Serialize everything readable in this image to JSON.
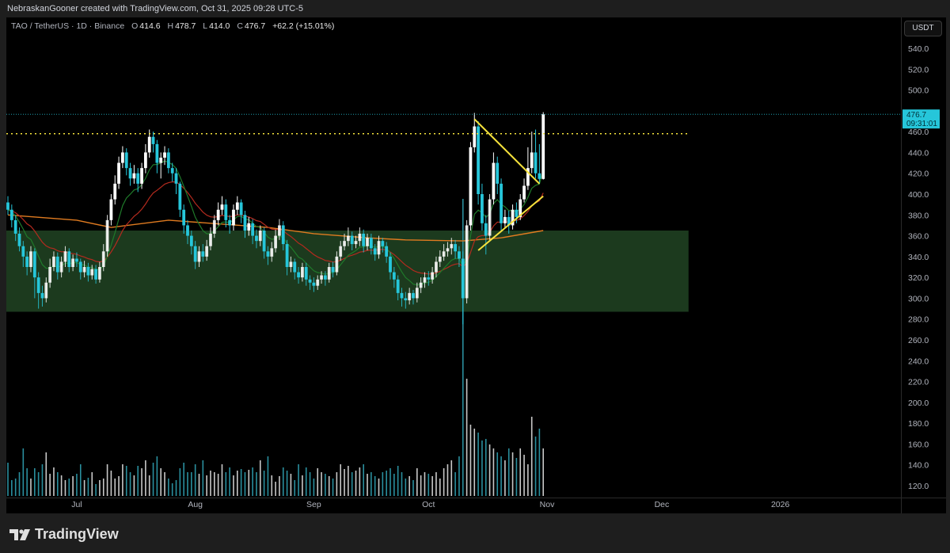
{
  "header": {
    "attribution": "NebraskanGooner created with TradingView.com, Oct 31, 2025 09:28 UTC-5"
  },
  "legend": {
    "symbol": "TAO / TetherUS · 1D · Binance",
    "open_label": "O",
    "open": "414.6",
    "high_label": "H",
    "high": "478.7",
    "low_label": "L",
    "low": "414.0",
    "close_label": "C",
    "close": "476.7",
    "change": "+62.2 (+15.01%)"
  },
  "price_axis": {
    "currency": "USDT",
    "last_price": "476.7",
    "countdown": "09:31:01"
  },
  "footer": {
    "brand": "TradingView"
  },
  "colors": {
    "up": "#ffffff",
    "down": "#26c6da",
    "volume_up": "#c8c8c8",
    "volume_down": "#2a8f9e",
    "zone": "#1c3a1e",
    "fast_ma": "#1f7a2a",
    "slow_ma": "#b32a1e",
    "long_ma": "#e07b20",
    "trendline": "#f5e23c",
    "resistance": "#f5e23c",
    "last_price_line": "#26c6da"
  },
  "chart_data": {
    "type": "candlestick",
    "start_date": "2025-06-13",
    "interval": "1D",
    "ylim": [
      110,
      550
    ],
    "y_ticks": [
      540,
      520,
      500,
      480,
      460,
      440,
      420,
      400,
      380,
      360,
      340,
      320,
      300,
      280,
      260,
      240,
      220,
      200,
      180,
      160,
      140,
      120
    ],
    "x_ticks": [
      {
        "label": "Jul",
        "date": "2025-07-01"
      },
      {
        "label": "Aug",
        "date": "2025-08-01"
      },
      {
        "label": "Sep",
        "date": "2025-09-01"
      },
      {
        "label": "Oct",
        "date": "2025-10-01"
      },
      {
        "label": "Nov",
        "date": "2025-11-01"
      },
      {
        "label": "Dec",
        "date": "2025-12-01"
      },
      {
        "label": "2026",
        "date": "2026-01-01"
      }
    ],
    "grid": false,
    "ohlc": [
      [
        392,
        398,
        380,
        385
      ],
      [
        385,
        390,
        368,
        375
      ],
      [
        375,
        380,
        355,
        362
      ],
      [
        362,
        368,
        345,
        350
      ],
      [
        350,
        355,
        330,
        340
      ],
      [
        340,
        345,
        322,
        330
      ],
      [
        330,
        350,
        325,
        345
      ],
      [
        345,
        348,
        300,
        320
      ],
      [
        320,
        325,
        290,
        305
      ],
      [
        305,
        312,
        292,
        300
      ],
      [
        300,
        320,
        296,
        315
      ],
      [
        315,
        338,
        310,
        330
      ],
      [
        330,
        345,
        326,
        340
      ],
      [
        340,
        344,
        318,
        325
      ],
      [
        325,
        340,
        320,
        335
      ],
      [
        335,
        350,
        330,
        345
      ],
      [
        345,
        348,
        325,
        330
      ],
      [
        330,
        342,
        326,
        338
      ],
      [
        338,
        344,
        330,
        335
      ],
      [
        335,
        338,
        318,
        325
      ],
      [
        325,
        336,
        320,
        330
      ],
      [
        330,
        334,
        316,
        322
      ],
      [
        322,
        332,
        318,
        328
      ],
      [
        328,
        332,
        314,
        318
      ],
      [
        318,
        335,
        315,
        330
      ],
      [
        330,
        352,
        326,
        345
      ],
      [
        345,
        380,
        340,
        375
      ],
      [
        375,
        400,
        370,
        395
      ],
      [
        395,
        418,
        390,
        410
      ],
      [
        410,
        436,
        405,
        430
      ],
      [
        430,
        446,
        425,
        440
      ],
      [
        440,
        444,
        418,
        425
      ],
      [
        425,
        430,
        408,
        415
      ],
      [
        415,
        428,
        410,
        420
      ],
      [
        420,
        425,
        402,
        410
      ],
      [
        410,
        430,
        405,
        425
      ],
      [
        425,
        448,
        420,
        440
      ],
      [
        440,
        462,
        435,
        455
      ],
      [
        455,
        460,
        440,
        448
      ],
      [
        448,
        452,
        420,
        430
      ],
      [
        430,
        440,
        415,
        435
      ],
      [
        435,
        446,
        428,
        440
      ],
      [
        440,
        444,
        420,
        425
      ],
      [
        425,
        430,
        412,
        420
      ],
      [
        420,
        425,
        400,
        410
      ],
      [
        410,
        412,
        378,
        385
      ],
      [
        385,
        390,
        362,
        370
      ],
      [
        370,
        375,
        352,
        360
      ],
      [
        360,
        365,
        342,
        350
      ],
      [
        350,
        355,
        328,
        335
      ],
      [
        335,
        350,
        330,
        345
      ],
      [
        345,
        352,
        335,
        340
      ],
      [
        340,
        356,
        336,
        350
      ],
      [
        350,
        368,
        346,
        362
      ],
      [
        362,
        380,
        358,
        375
      ],
      [
        375,
        392,
        370,
        385
      ],
      [
        385,
        398,
        380,
        390
      ],
      [
        390,
        395,
        368,
        375
      ],
      [
        375,
        380,
        362,
        370
      ],
      [
        370,
        390,
        365,
        385
      ],
      [
        385,
        398,
        380,
        392
      ],
      [
        392,
        395,
        372,
        380
      ],
      [
        380,
        384,
        358,
        365
      ],
      [
        365,
        378,
        360,
        372
      ],
      [
        372,
        376,
        352,
        360
      ],
      [
        360,
        366,
        348,
        355
      ],
      [
        355,
        370,
        350,
        365
      ],
      [
        365,
        368,
        338,
        345
      ],
      [
        345,
        350,
        332,
        340
      ],
      [
        340,
        354,
        335,
        348
      ],
      [
        348,
        366,
        344,
        360
      ],
      [
        360,
        376,
        356,
        370
      ],
      [
        370,
        374,
        346,
        352
      ],
      [
        352,
        356,
        322,
        330
      ],
      [
        330,
        340,
        325,
        335
      ],
      [
        335,
        338,
        318,
        325
      ],
      [
        325,
        330,
        314,
        320
      ],
      [
        320,
        334,
        316,
        330
      ],
      [
        330,
        334,
        312,
        318
      ],
      [
        318,
        322,
        308,
        315
      ],
      [
        315,
        320,
        306,
        312
      ],
      [
        312,
        322,
        308,
        318
      ],
      [
        318,
        326,
        314,
        322
      ],
      [
        322,
        326,
        312,
        318
      ],
      [
        318,
        334,
        315,
        330
      ],
      [
        330,
        335,
        320,
        325
      ],
      [
        325,
        345,
        322,
        340
      ],
      [
        340,
        355,
        336,
        350
      ],
      [
        350,
        362,
        346,
        355
      ],
      [
        355,
        368,
        350,
        360
      ],
      [
        360,
        364,
        346,
        352
      ],
      [
        352,
        360,
        348,
        355
      ],
      [
        355,
        368,
        350,
        362
      ],
      [
        362,
        366,
        344,
        350
      ],
      [
        350,
        362,
        346,
        358
      ],
      [
        358,
        362,
        342,
        348
      ],
      [
        348,
        352,
        336,
        342
      ],
      [
        342,
        360,
        338,
        355
      ],
      [
        355,
        358,
        344,
        350
      ],
      [
        350,
        354,
        334,
        340
      ],
      [
        340,
        344,
        318,
        325
      ],
      [
        325,
        330,
        310,
        318
      ],
      [
        318,
        322,
        298,
        305
      ],
      [
        305,
        310,
        292,
        300
      ],
      [
        300,
        306,
        290,
        298
      ],
      [
        298,
        310,
        294,
        305
      ],
      [
        305,
        308,
        294,
        300
      ],
      [
        300,
        315,
        296,
        310
      ],
      [
        310,
        320,
        305,
        315
      ],
      [
        315,
        325,
        310,
        320
      ],
      [
        320,
        326,
        312,
        318
      ],
      [
        318,
        330,
        314,
        325
      ],
      [
        325,
        340,
        320,
        335
      ],
      [
        335,
        346,
        330,
        340
      ],
      [
        340,
        352,
        336,
        345
      ],
      [
        345,
        354,
        340,
        348
      ],
      [
        348,
        358,
        342,
        352
      ],
      [
        352,
        356,
        338,
        345
      ],
      [
        345,
        350,
        330,
        338
      ],
      [
        338,
        345,
        275,
        300
      ],
      [
        300,
        375,
        295,
        370
      ],
      [
        370,
        450,
        365,
        445
      ],
      [
        445,
        478,
        440,
        465
      ],
      [
        465,
        470,
        390,
        400
      ],
      [
        400,
        410,
        365,
        372
      ],
      [
        372,
        380,
        342,
        360
      ],
      [
        360,
        400,
        356,
        395
      ],
      [
        395,
        440,
        390,
        430
      ],
      [
        430,
        436,
        400,
        410
      ],
      [
        410,
        415,
        365,
        372
      ],
      [
        372,
        385,
        368,
        378
      ],
      [
        378,
        384,
        362,
        370
      ],
      [
        370,
        390,
        366,
        385
      ],
      [
        385,
        392,
        372,
        378
      ],
      [
        378,
        400,
        375,
        395
      ],
      [
        395,
        415,
        392,
        408
      ],
      [
        408,
        445,
        404,
        425
      ],
      [
        425,
        460,
        420,
        440
      ],
      [
        440,
        462,
        415,
        420
      ],
      [
        420,
        448,
        410,
        414.6
      ],
      [
        414.6,
        478.7,
        414.0,
        476.7
      ]
    ],
    "volume": [
      42,
      20,
      22,
      30,
      60,
      35,
      22,
      35,
      30,
      40,
      55,
      28,
      36,
      30,
      26,
      20,
      22,
      25,
      28,
      40,
      20,
      23,
      30,
      15,
      20,
      22,
      40,
      32,
      22,
      25,
      40,
      38,
      30,
      26,
      38,
      35,
      45,
      26,
      42,
      50,
      35,
      30,
      22,
      16,
      20,
      35,
      42,
      30,
      30,
      40,
      28,
      45,
      26,
      32,
      30,
      28,
      40,
      30,
      36,
      26,
      32,
      34,
      30,
      33,
      36,
      30,
      45,
      32,
      50,
      26,
      18,
      25,
      36,
      32,
      28,
      20,
      40,
      26,
      36,
      30,
      22,
      35,
      30,
      28,
      25,
      22,
      30,
      40,
      34,
      38,
      30,
      32,
      36,
      40,
      28,
      30,
      25,
      22,
      30,
      32,
      35,
      28,
      38,
      30,
      22,
      25,
      20,
      35,
      26,
      30,
      28,
      25,
      30,
      22,
      35,
      40,
      45,
      30,
      50,
      375,
      148,
      90,
      85,
      80,
      70,
      72,
      65,
      60,
      55,
      50,
      45,
      60,
      55,
      48,
      60,
      52,
      40,
      100,
      75,
      85,
      60
    ],
    "long_ma": [
      [
        "2025-06-13",
        380
      ],
      [
        "2025-07-01",
        375
      ],
      [
        "2025-07-10",
        368
      ],
      [
        "2025-07-25",
        375
      ],
      [
        "2025-08-05",
        372
      ],
      [
        "2025-08-20",
        368
      ],
      [
        "2025-09-01",
        362
      ],
      [
        "2025-09-15",
        358
      ],
      [
        "2025-09-25",
        356
      ],
      [
        "2025-10-10",
        355
      ],
      [
        "2025-10-20",
        358
      ],
      [
        "2025-10-31",
        365
      ]
    ],
    "fast_ma_period": 9,
    "slow_ma_period": 21,
    "zone": {
      "from": "2025-06-13",
      "to": "2025-12-08",
      "low": 287,
      "high": 365
    },
    "resistance": {
      "price": 458,
      "from": "2025-06-13",
      "to": "2025-12-08"
    },
    "last_price": 476.7,
    "trendlines": [
      {
        "from": [
          "2025-10-13",
          472
        ],
        "to": [
          "2025-10-30",
          410
        ]
      },
      {
        "from": [
          "2025-10-14",
          346
        ],
        "to": [
          "2025-10-31",
          398
        ]
      }
    ]
  }
}
